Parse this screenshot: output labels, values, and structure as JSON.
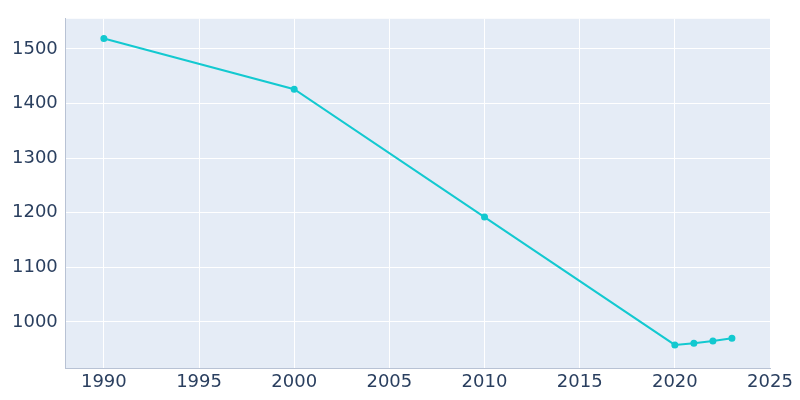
{
  "chart_data": {
    "type": "line",
    "x": [
      1990,
      2000,
      2010,
      2020,
      2021,
      2022,
      2023
    ],
    "values": [
      1519,
      1426,
      1192,
      958,
      961,
      965,
      970
    ],
    "color": "#13c9d0",
    "marker": "circle",
    "xlim": [
      1988,
      2025
    ],
    "xticks": [
      1990,
      1995,
      2000,
      2005,
      2010,
      2015,
      2020,
      2025
    ],
    "ylim": [
      915,
      1555
    ],
    "yticks": [
      1000,
      1100,
      1200,
      1300,
      1400,
      1500
    ],
    "grid": true
  }
}
